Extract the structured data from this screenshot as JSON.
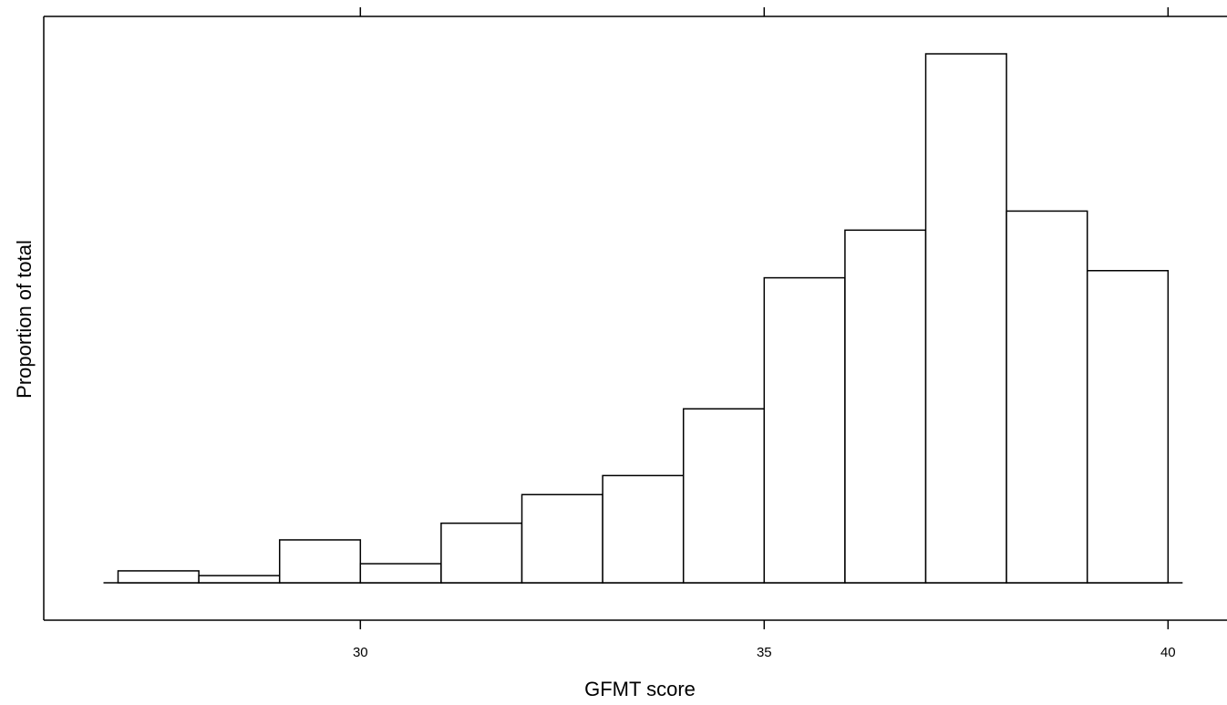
{
  "chart_data": {
    "type": "histogram",
    "xlabel": "GFMT score",
    "ylabel": "Proportion of total",
    "bins": [
      27,
      28,
      29,
      30,
      31,
      32,
      33,
      34,
      35,
      36,
      37,
      38,
      39,
      40
    ],
    "values": [
      0.005,
      0.003,
      0.018,
      0.008,
      0.025,
      0.037,
      0.045,
      0.073,
      0.128,
      0.148,
      0.222,
      0.156,
      0.131
    ],
    "color": "#ffffff",
    "xlim": [
      26.08,
      40.73
    ],
    "xticks": [
      30,
      35,
      40
    ],
    "ylim": [
      -0.0157,
      0.2377
    ]
  }
}
